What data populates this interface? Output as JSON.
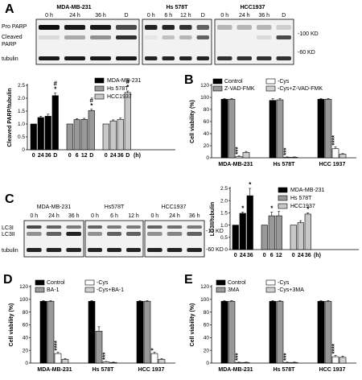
{
  "panel_a": {
    "letter": "A",
    "cell_lines": [
      "MDA-MB-231",
      "Hs 578T",
      "HCC1937"
    ],
    "lanes": [
      [
        "0 h",
        "24 h",
        "36 h",
        "D"
      ],
      [
        "0 h",
        "6 h",
        "12 h",
        "D"
      ],
      [
        "0 h",
        "24 h",
        "36 h",
        "D"
      ]
    ],
    "row_labels": [
      "Pro PARP",
      "Cleaved",
      "PARP",
      "tubulin"
    ],
    "markers": [
      "-100 KD",
      "-60 KD"
    ]
  },
  "panel_c": {
    "letter": "C",
    "cell_lines": [
      "MDA-MB-231",
      "Hs578T",
      "HCC1937"
    ],
    "lanes": [
      [
        "0 h",
        "24 h",
        "36 h"
      ],
      [
        "0 h",
        "6 h",
        "12 h"
      ],
      [
        "0 h",
        "24 h",
        "36 h"
      ]
    ],
    "row_labels": [
      "LC3I",
      "LC3II",
      "tubulin"
    ],
    "markers": [
      "-15 KD",
      "-60 KD"
    ]
  },
  "chart_data": [
    {
      "id": "A-quant",
      "type": "bar",
      "ylabel": "Cleaved PARP/tubulin",
      "ylim": [
        0,
        2.5
      ],
      "yticks": [
        "0",
        "0.5",
        "1.0",
        "1.5",
        "2.0",
        "2.5"
      ],
      "xunit": "(h)",
      "groups": [
        {
          "name": "MDA-MB-231",
          "color": "#000000",
          "categories": [
            "0",
            "24",
            "36",
            "D"
          ],
          "values": [
            1.0,
            1.25,
            1.3,
            2.1
          ],
          "errors": [
            0.0,
            0.05,
            0.08,
            0.1
          ],
          "marks": [
            "",
            "",
            "",
            "#\n*"
          ]
        },
        {
          "name": "Hs 578T",
          "color": "#999999",
          "categories": [
            "0",
            "6",
            "12",
            "D"
          ],
          "values": [
            1.0,
            1.17,
            1.18,
            1.52
          ],
          "errors": [
            0.0,
            0.04,
            0.04,
            0.05
          ],
          "marks": [
            "",
            "",
            "",
            "#\n*"
          ]
        },
        {
          "name": "HCC1937",
          "color": "#c8c8c8",
          "categories": [
            "0",
            "24",
            "36",
            "D"
          ],
          "values": [
            1.0,
            1.12,
            1.18,
            2.22
          ],
          "errors": [
            0.0,
            0.04,
            0.05,
            0.06
          ],
          "marks": [
            "",
            "",
            "",
            "#\n*"
          ]
        }
      ],
      "legend": [
        "MDA-MB-231",
        "Hs 578T",
        "HCC1937"
      ]
    },
    {
      "id": "B",
      "letter": "B",
      "type": "bar",
      "ylabel": "Cell viability (%)",
      "ylim": [
        0,
        120
      ],
      "yticks": [
        "0",
        "20",
        "40",
        "60",
        "80",
        "100",
        "120"
      ],
      "categories": [
        "MDA-MB-231",
        "Hs 578T",
        "HCC 1937"
      ],
      "series": [
        {
          "name": "Control",
          "color": "#000000",
          "values": [
            97,
            95,
            97
          ],
          "errors": [
            1,
            3,
            1
          ]
        },
        {
          "name": "Z-VAD-FMK",
          "color": "#999999",
          "values": [
            97,
            96,
            97
          ],
          "errors": [
            1,
            2,
            1
          ]
        },
        {
          "name": "-Cys",
          "color": "#ffffff",
          "values": [
            2,
            1,
            15
          ],
          "errors": [
            1,
            0.5,
            3
          ]
        },
        {
          "name": "-Cys+Z-VAD-FMK",
          "color": "#d0d0d0",
          "values": [
            9,
            1,
            6
          ],
          "errors": [
            1.5,
            0.5,
            1
          ]
        }
      ],
      "marks": [
        "***",
        "***",
        "****"
      ],
      "mark_series": 2,
      "legend": [
        "Control",
        "-Cys",
        "Z-VAD-FMK",
        "-Cys+Z-VAD-FMK"
      ]
    },
    {
      "id": "C-quant",
      "type": "bar",
      "ylabel": "LC3II/tubulin",
      "ylim": [
        0,
        2.5
      ],
      "yticks": [
        "0",
        "0.5",
        "1.0",
        "1.5",
        "2.0",
        "2.5"
      ],
      "xunit": "(h)",
      "groups": [
        {
          "name": "MDA-MB-231",
          "color": "#000000",
          "categories": [
            "0",
            "24",
            "36"
          ],
          "values": [
            1.0,
            1.48,
            2.2
          ],
          "errors": [
            0.0,
            0.05,
            0.3
          ],
          "marks": [
            "",
            "*",
            "*"
          ]
        },
        {
          "name": "Hs 578T",
          "color": "#999999",
          "categories": [
            "0",
            "6",
            "12"
          ],
          "values": [
            1.0,
            1.38,
            1.38
          ],
          "errors": [
            0.0,
            0.15,
            0.18
          ],
          "marks": [
            "",
            "*",
            "*"
          ]
        },
        {
          "name": "HCC1937",
          "color": "#c8c8c8",
          "categories": [
            "0",
            "24",
            "36"
          ],
          "values": [
            1.0,
            1.1,
            1.45
          ],
          "errors": [
            0.0,
            0.08,
            0.05
          ],
          "marks": [
            "",
            "",
            "*"
          ]
        }
      ],
      "legend": [
        "MDA-MB-231",
        "Hs 578T",
        "HCC1937"
      ]
    },
    {
      "id": "D",
      "letter": "D",
      "type": "bar",
      "ylabel": "Cell viability (%)",
      "ylim": [
        0,
        120
      ],
      "yticks": [
        "0",
        "20",
        "40",
        "60",
        "80",
        "100",
        "120"
      ],
      "categories": [
        "MDA-MB-231",
        "Hs 578T",
        "HCC 1937"
      ],
      "series": [
        {
          "name": "Control",
          "color": "#000000",
          "values": [
            97,
            97,
            97
          ],
          "errors": [
            1,
            1,
            1
          ]
        },
        {
          "name": "BA-1",
          "color": "#999999",
          "values": [
            97,
            50,
            97
          ],
          "errors": [
            1,
            7,
            1
          ]
        },
        {
          "name": "-Cys",
          "color": "#ffffff",
          "values": [
            15,
            2,
            15
          ],
          "errors": [
            2,
            0.5,
            2
          ]
        },
        {
          "name": "-Cys+BA-1",
          "color": "#d0d0d0",
          "values": [
            6,
            1,
            6
          ],
          "errors": [
            1,
            0.5,
            1
          ]
        }
      ],
      "marks": [
        "****",
        "***",
        "*"
      ],
      "mark_series": 2,
      "legend": [
        "Control",
        "-Cys",
        "BA-1",
        "-Cys+BA-1"
      ]
    },
    {
      "id": "E",
      "letter": "E",
      "type": "bar",
      "ylabel": "Cell viability (%)",
      "ylim": [
        0,
        120
      ],
      "yticks": [
        "0",
        "20",
        "40",
        "60",
        "80",
        "100",
        "120"
      ],
      "categories": [
        "MDA-MB-231",
        "Hs 578T",
        "HCC 1937"
      ],
      "series": [
        {
          "name": "Control",
          "color": "#000000",
          "values": [
            97,
            97,
            97
          ],
          "errors": [
            1,
            1,
            1
          ]
        },
        {
          "name": "3MA",
          "color": "#999999",
          "values": [
            97,
            97,
            97
          ],
          "errors": [
            1,
            1,
            1
          ]
        },
        {
          "name": "-Cys",
          "color": "#ffffff",
          "values": [
            1,
            1,
            10
          ],
          "errors": [
            0.5,
            0.5,
            2
          ]
        },
        {
          "name": "-Cys+3MA",
          "color": "#d0d0d0",
          "values": [
            1,
            1,
            9
          ],
          "errors": [
            0.5,
            0.5,
            2
          ]
        }
      ],
      "marks": [
        "***",
        "***",
        "****"
      ],
      "mark_series": 2,
      "legend": [
        "Control",
        "-Cys",
        "3MA",
        "-Cys+3MA"
      ]
    }
  ]
}
